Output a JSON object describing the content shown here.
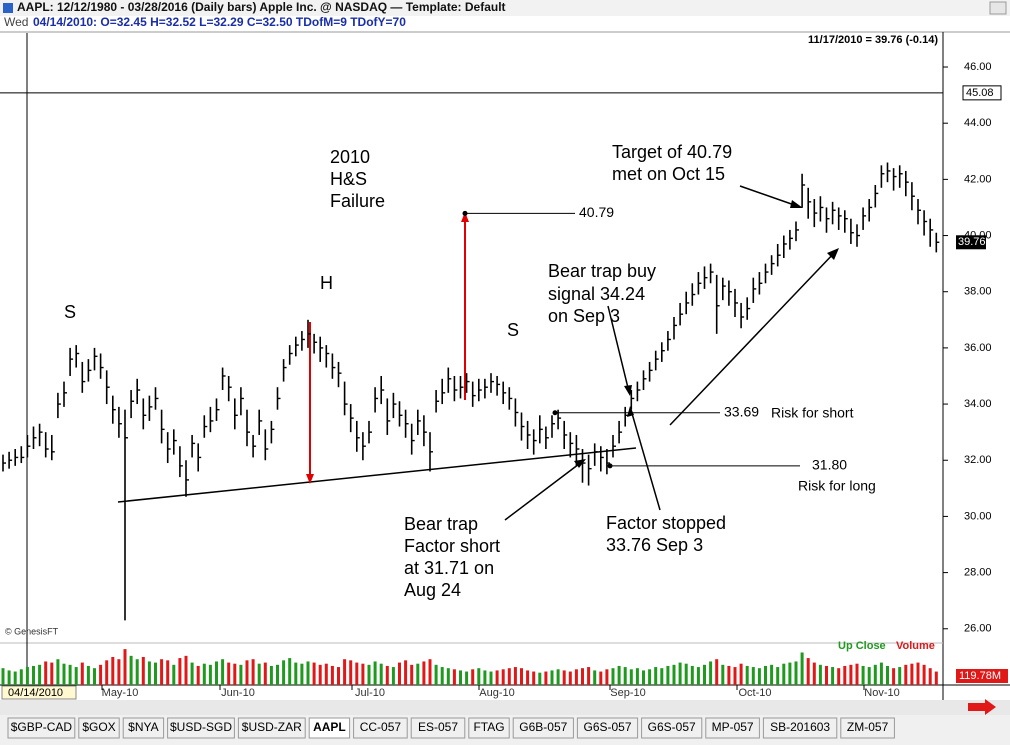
{
  "window": {
    "title": "AAPL:  12/12/1980 - 03/28/2016  (Daily bars)   Apple Inc. @ NASDAQ  —  Template: Default",
    "info_day": "Wed",
    "info": "04/14/2010:  O=32.45  H=32.52  L=32.29  C=32.50  TDofM=9  TDofY=70"
  },
  "chart_data": {
    "type": "ohlc",
    "quote": "11/17/2010 = 39.76 (-0.14)",
    "color": "#000000",
    "close": [
      31.9,
      32.0,
      32.1,
      32.1,
      32.5,
      32.8,
      33.0,
      32.4,
      32.3,
      34.0,
      34.4,
      35.6,
      35.8,
      34.8,
      35.2,
      35.7,
      35.3,
      34.6,
      33.8,
      33.3,
      32.8,
      34.1,
      34.5,
      33.6,
      33.9,
      34.2,
      33.1,
      32.4,
      32.7,
      31.8,
      31.3,
      32.6,
      32.1,
      33.2,
      33.4,
      33.8,
      35.0,
      34.6,
      33.6,
      34.2,
      33.0,
      32.5,
      33.4,
      32.4,
      33.1,
      34.2,
      35.3,
      35.8,
      36.1,
      36.3,
      36.5,
      36.2,
      36.0,
      35.8,
      35.3,
      35.1,
      34.0,
      33.5,
      32.8,
      32.5,
      33.0,
      34.2,
      34.5,
      33.4,
      34.0,
      33.6,
      33.3,
      32.7,
      33.4,
      33.0,
      32.3,
      34.1,
      34.4,
      34.9,
      34.5,
      34.6,
      34.8,
      34.3,
      34.5,
      34.6,
      34.8,
      34.7,
      34.4,
      34.2,
      33.7,
      33.2,
      32.9,
      32.7,
      33.1,
      32.8,
      33.3,
      33.5,
      32.9,
      32.6,
      32.4,
      31.9,
      31.7,
      32.3,
      32.1,
      31.9,
      32.5,
      33.0,
      33.6,
      34.2,
      34.5,
      34.9,
      35.2,
      35.6,
      35.9,
      36.3,
      36.8,
      37.2,
      37.6,
      37.9,
      38.3,
      38.5,
      38.7,
      37.5,
      38.2,
      38.0,
      37.6,
      37.1,
      37.4,
      38.1,
      38.3,
      38.7,
      39.0,
      39.3,
      39.7,
      39.9,
      40.2,
      41.8,
      41.2,
      40.8,
      41.0,
      40.6,
      40.9,
      40.7,
      40.6,
      40.1,
      40.0,
      40.7,
      41.0,
      41.5,
      42.2,
      42.3,
      42.1,
      42.2,
      41.9,
      41.4,
      40.9,
      40.5,
      40.2,
      39.76
    ],
    "high": [
      32.2,
      32.3,
      32.4,
      32.5,
      32.9,
      33.2,
      33.3,
      33.0,
      32.9,
      34.4,
      34.8,
      36.0,
      36.1,
      35.5,
      35.6,
      36.0,
      35.8,
      35.2,
      34.3,
      33.9,
      33.8,
      34.5,
      34.9,
      34.2,
      34.3,
      34.6,
      33.8,
      33.0,
      33.1,
      32.5,
      32.0,
      32.9,
      32.6,
      33.6,
      33.9,
      34.2,
      35.3,
      35.0,
      34.2,
      34.6,
      33.8,
      32.9,
      33.8,
      33.1,
      33.4,
      34.6,
      35.6,
      36.1,
      36.4,
      36.6,
      37.0,
      36.5,
      36.4,
      36.1,
      35.8,
      35.5,
      34.8,
      34.0,
      33.4,
      33.0,
      33.4,
      34.6,
      35.0,
      34.2,
      34.4,
      34.1,
      33.8,
      33.3,
      33.8,
      33.6,
      33.0,
      34.5,
      34.9,
      35.3,
      35.0,
      35.0,
      35.1,
      34.8,
      34.9,
      34.9,
      35.1,
      35.0,
      34.8,
      34.6,
      34.2,
      33.7,
      33.4,
      33.1,
      33.6,
      33.2,
      33.6,
      33.8,
      33.4,
      33.0,
      32.9,
      32.4,
      32.2,
      32.6,
      32.5,
      32.4,
      32.9,
      33.4,
      33.9,
      34.5,
      34.8,
      35.2,
      35.5,
      35.9,
      36.2,
      36.6,
      37.1,
      37.6,
      38.0,
      38.3,
      38.7,
      38.9,
      39.0,
      38.6,
      38.5,
      38.4,
      38.1,
      37.6,
      37.8,
      38.5,
      38.7,
      39.0,
      39.3,
      39.7,
      40.0,
      40.2,
      40.5,
      42.2,
      41.7,
      41.3,
      41.4,
      41.0,
      41.2,
      41.0,
      40.9,
      40.6,
      40.4,
      41.0,
      41.3,
      41.8,
      42.5,
      42.6,
      42.4,
      42.5,
      42.3,
      41.9,
      41.3,
      40.9,
      40.6,
      40.1
    ],
    "low": [
      31.6,
      31.7,
      31.8,
      31.9,
      32.1,
      32.4,
      32.5,
      32.1,
      32.0,
      33.5,
      33.9,
      35.0,
      35.3,
      34.4,
      34.8,
      35.2,
      34.9,
      34.0,
      33.3,
      32.8,
      26.3,
      33.5,
      34.0,
      33.1,
      33.4,
      33.8,
      32.6,
      31.9,
      32.2,
      31.4,
      30.7,
      32.1,
      31.6,
      32.8,
      33.0,
      33.4,
      34.5,
      34.1,
      33.1,
      33.6,
      32.5,
      32.1,
      32.9,
      32.0,
      32.6,
      33.8,
      34.8,
      35.4,
      35.7,
      35.9,
      36.0,
      35.8,
      35.5,
      35.3,
      34.9,
      34.6,
      33.6,
      33.0,
      32.3,
      32.0,
      32.6,
      33.7,
      34.0,
      32.9,
      33.5,
      33.2,
      32.8,
      32.2,
      32.9,
      32.5,
      31.6,
      33.7,
      34.0,
      34.4,
      34.1,
      34.2,
      34.4,
      33.9,
      34.1,
      34.2,
      34.4,
      34.3,
      34.0,
      33.8,
      33.2,
      32.7,
      32.4,
      32.2,
      32.6,
      32.4,
      32.8,
      33.1,
      32.4,
      32.1,
      31.8,
      31.2,
      31.1,
      31.8,
      31.6,
      31.5,
      32.1,
      32.6,
      33.2,
      33.8,
      34.1,
      34.5,
      34.8,
      35.2,
      35.5,
      35.9,
      36.3,
      36.8,
      37.2,
      37.5,
      37.9,
      38.1,
      38.3,
      36.5,
      37.7,
      37.5,
      37.1,
      36.7,
      37.0,
      37.6,
      37.9,
      38.3,
      38.6,
      38.9,
      39.2,
      39.5,
      39.8,
      41.0,
      40.6,
      40.3,
      40.5,
      40.1,
      40.4,
      40.2,
      40.1,
      39.7,
      39.6,
      40.2,
      40.5,
      41.0,
      41.7,
      41.9,
      41.6,
      41.7,
      41.4,
      40.9,
      40.4,
      40.0,
      39.6,
      39.4
    ],
    "ylim": [
      25.6,
      47.14
    ],
    "yticks": [
      {
        "value": 26,
        "label": "26.00"
      },
      {
        "value": 28,
        "label": "28.00"
      },
      {
        "value": 30,
        "label": "30.00"
      },
      {
        "value": 32,
        "label": "32.00"
      },
      {
        "value": 34,
        "label": "34.00"
      },
      {
        "value": 36,
        "label": "36.00"
      },
      {
        "value": 38,
        "label": "38.00"
      },
      {
        "value": 40,
        "label": "40.00"
      },
      {
        "value": 42,
        "label": "42.00"
      },
      {
        "value": 44,
        "label": "44.00"
      },
      {
        "value": 46,
        "label": "46.00"
      }
    ],
    "x_tick_labels": [
      "May-10",
      "Jun-10",
      "Jul-10",
      "Aug-10",
      "Sep-10",
      "Oct-10",
      "Nov-10"
    ],
    "last_price": 39.76,
    "crosshair": {
      "date": "04/14/2010",
      "price": 45.08
    },
    "levels": [
      40.79,
      33.69,
      {
        "value": 31.8,
        "label": "31.80"
      }
    ],
    "volume": {
      "values": [
        150,
        130,
        120,
        140,
        160,
        170,
        180,
        210,
        200,
        230,
        190,
        180,
        160,
        200,
        170,
        150,
        180,
        220,
        250,
        230,
        320,
        260,
        230,
        250,
        210,
        200,
        230,
        220,
        180,
        240,
        260,
        200,
        170,
        190,
        180,
        210,
        230,
        200,
        190,
        180,
        220,
        230,
        190,
        200,
        170,
        180,
        220,
        240,
        200,
        190,
        210,
        200,
        180,
        190,
        170,
        160,
        230,
        220,
        200,
        190,
        180,
        210,
        190,
        170,
        160,
        200,
        220,
        180,
        190,
        210,
        230,
        180,
        160,
        150,
        140,
        130,
        120,
        140,
        150,
        130,
        120,
        130,
        140,
        150,
        160,
        150,
        130,
        120,
        110,
        120,
        130,
        140,
        130,
        120,
        140,
        150,
        160,
        130,
        120,
        140,
        150,
        170,
        160,
        140,
        150,
        130,
        140,
        160,
        150,
        170,
        180,
        200,
        190,
        170,
        160,
        180,
        210,
        230,
        180,
        170,
        160,
        190,
        170,
        160,
        150,
        170,
        180,
        160,
        190,
        200,
        210,
        290,
        240,
        200,
        180,
        170,
        160,
        150,
        170,
        180,
        190,
        170,
        160,
        180,
        200,
        170,
        150,
        160,
        180,
        190,
        200,
        180,
        150,
        119.78
      ],
      "ylim": [
        0,
        330
      ],
      "up_color": "#1f9a1f",
      "down_color": "#e01818",
      "last": {
        "value": 119.78,
        "label": "119.78M"
      },
      "legend": [
        "Up Close",
        "Volume"
      ]
    },
    "annotations": {
      "title": [
        "2010",
        "H&S",
        "Failure"
      ],
      "left_shoulder": "S",
      "head": "H",
      "right_shoulder": "S",
      "target": [
        "Target of 40.79",
        "met on Oct 15"
      ],
      "buy_signal": [
        "Bear trap buy",
        "signal 34.24",
        "on Sep 3"
      ],
      "short": [
        "Bear trap",
        "Factor short",
        "at 31.71 on",
        "Aug 24"
      ],
      "stopped": [
        "Factor stopped",
        "33.76 Sep 3"
      ],
      "risk_short": "Risk for short",
      "risk_long": "Risk for long"
    },
    "copyright": "© GenesisFT"
  },
  "tabs": [
    "$GBP-CAD",
    "$GOX",
    "$NYA",
    "$USD-SGD",
    "$USD-ZAR",
    "AAPL",
    "CC-057",
    "ES-057",
    "FTAG",
    "G6B-057",
    "G6S-057",
    "G6S-057",
    "MP-057",
    "SB-201603",
    "ZM-057"
  ],
  "active_tab": 5
}
